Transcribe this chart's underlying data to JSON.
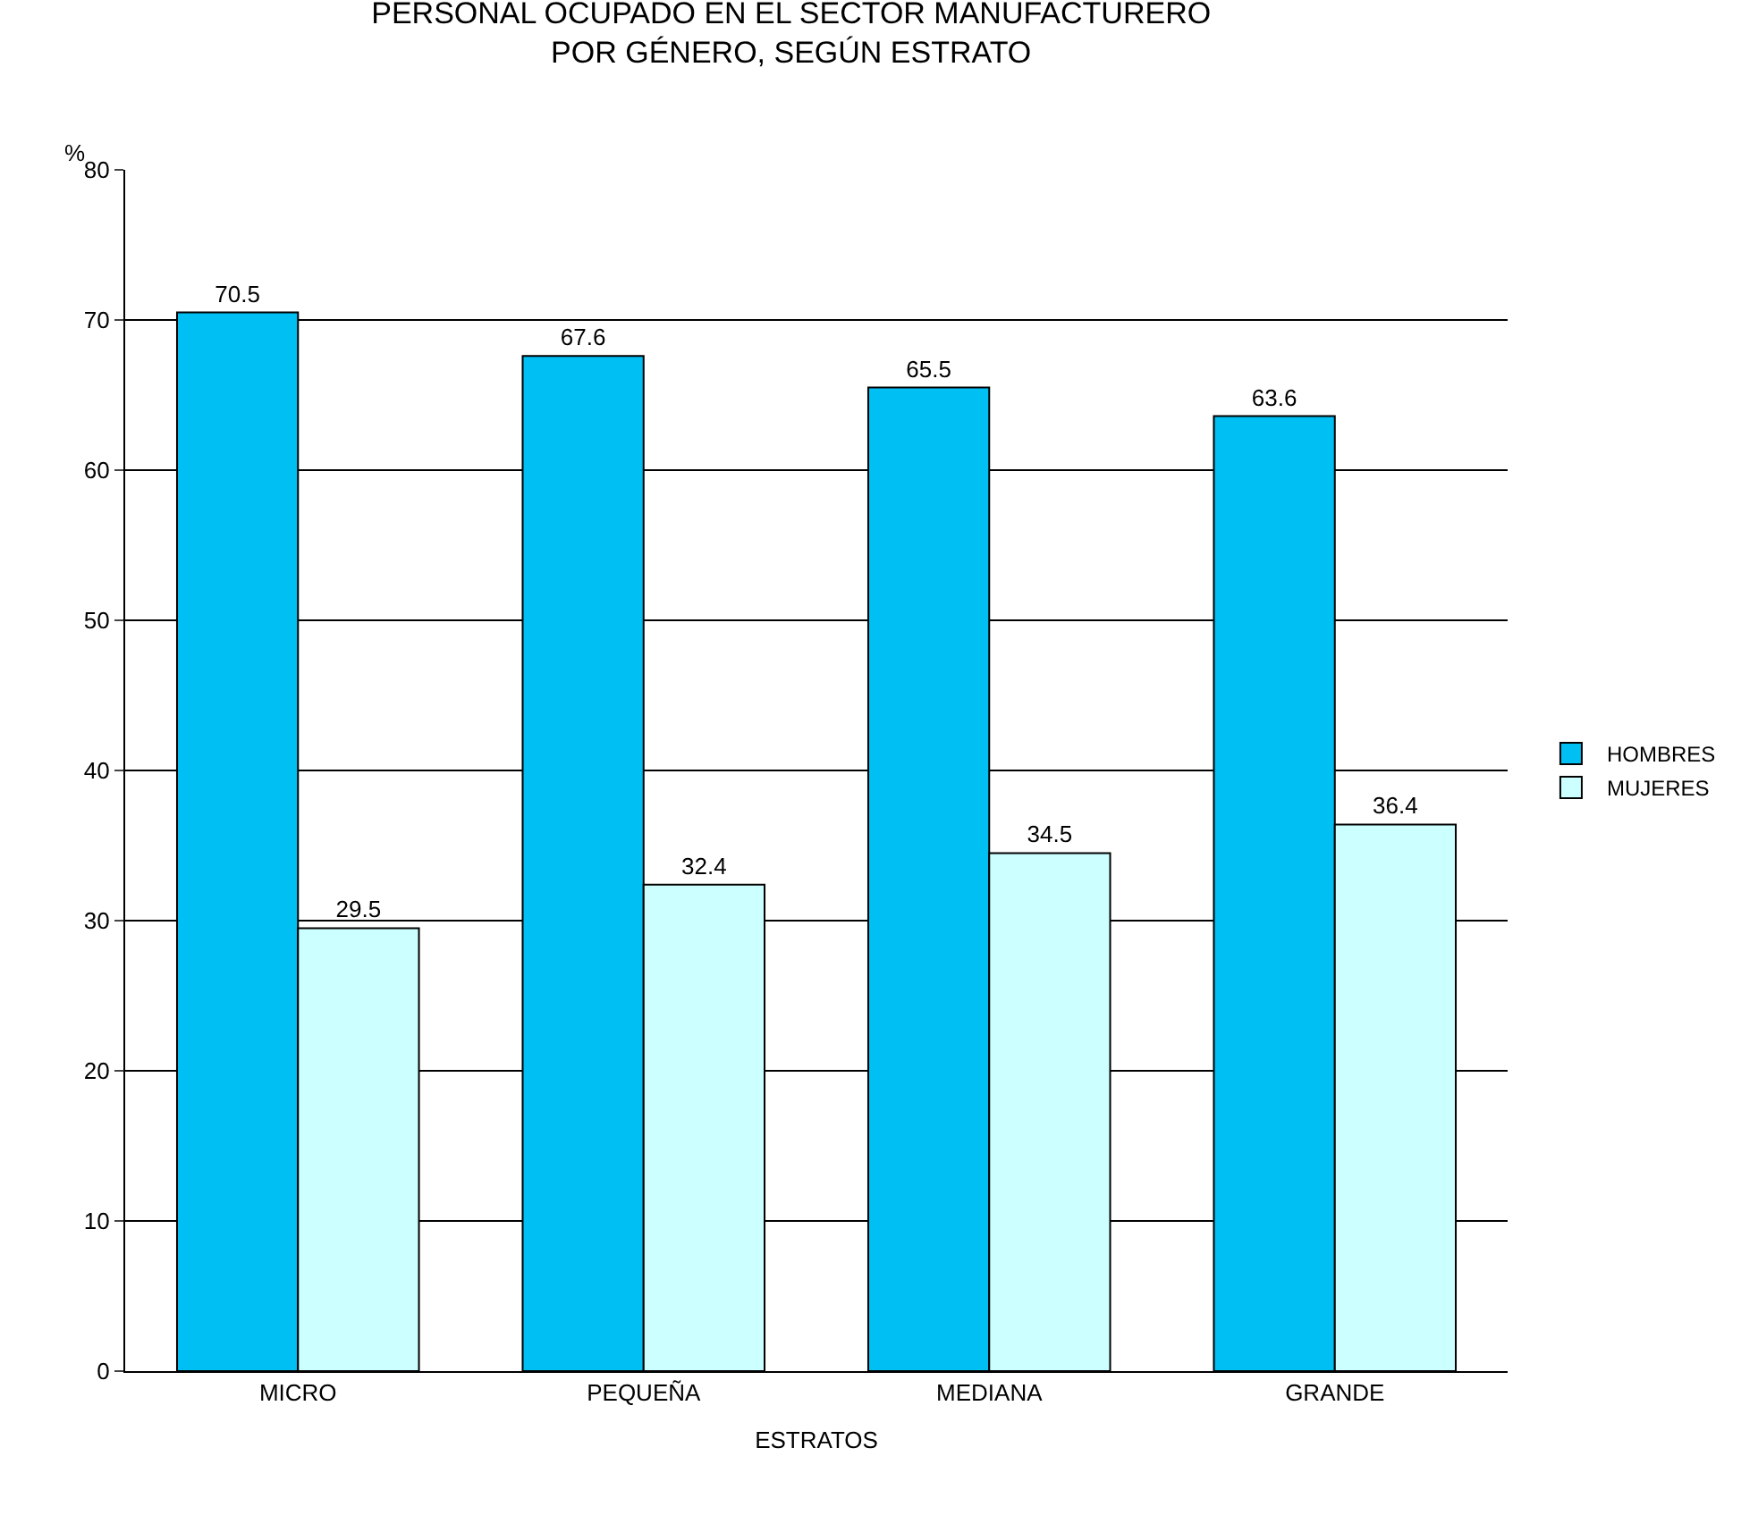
{
  "chart_data": {
    "type": "bar",
    "title": "PERSONAL OCUPADO EN EL SECTOR MANUFACTURERO\nPOR GÉNERO, SEGÚN ESTRATO",
    "xlabel": "ESTRATOS",
    "ylabel": "%",
    "categories": [
      "MICRO",
      "PEQUEÑA",
      "MEDIANA",
      "GRANDE"
    ],
    "series": [
      {
        "name": "HOMBRES",
        "color": "#00bff3",
        "values": [
          70.5,
          67.6,
          65.5,
          63.6
        ]
      },
      {
        "name": "MUJERES",
        "color": "#ccffff",
        "values": [
          29.5,
          32.4,
          34.5,
          36.4
        ]
      }
    ],
    "ylim": [
      0,
      80
    ],
    "yticks": [
      0,
      10,
      20,
      30,
      40,
      50,
      60,
      70,
      80
    ],
    "grid": "y",
    "legend": "right",
    "data_labels": true
  }
}
